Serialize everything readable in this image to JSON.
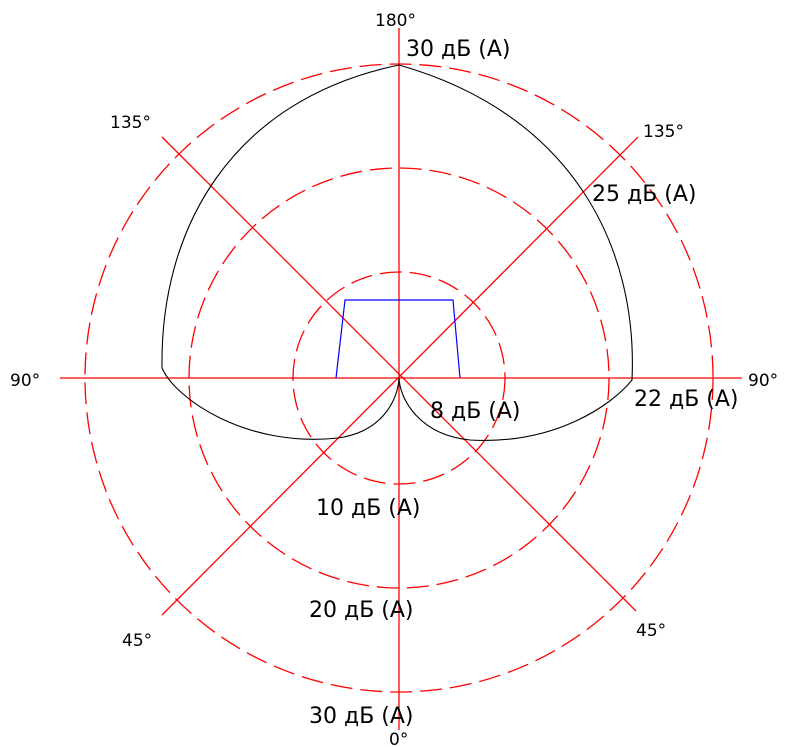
{
  "angle_labels": {
    "top": "180°",
    "bottom": "0°",
    "left": "90°",
    "right": "90°",
    "upper_left": "135°",
    "upper_right": "135°",
    "lower_left": "45°",
    "lower_right": "45°"
  },
  "level_labels": {
    "top": "30 дБ (А)",
    "upper_right": "25 дБ (А)",
    "right": "22 дБ (А)",
    "center": "8 дБ (А)",
    "inner": "10 дБ (А)",
    "middle": "20 дБ (А)",
    "bottom": "30 дБ (А)"
  },
  "colors": {
    "axes": "#ff0000",
    "rings": "#ff0000",
    "pattern": "#000000",
    "device": "#0000ff"
  }
}
